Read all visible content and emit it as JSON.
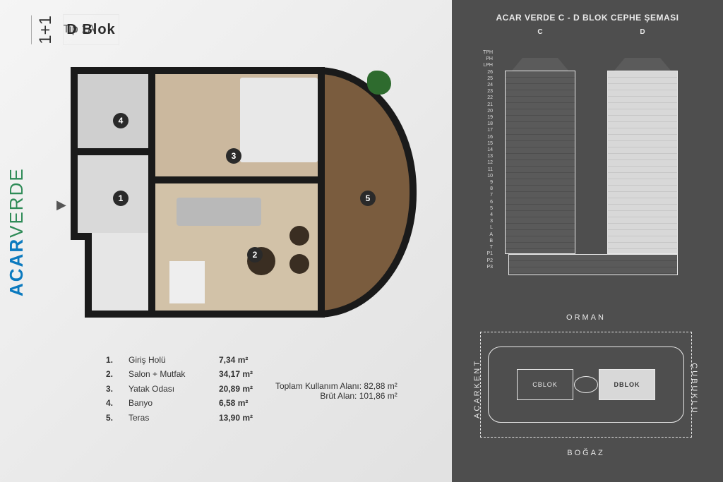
{
  "brand": {
    "part1": "ACAR",
    "part2": "VERDE"
  },
  "header": {
    "unit_type": "1+1",
    "block": "D Blok",
    "tip": "Tip 1A"
  },
  "rooms": [
    {
      "n": "1.",
      "label": "Giriş Holü",
      "area": "7,34  m²"
    },
    {
      "n": "2.",
      "label": "Salon + Mutfak",
      "area": "34,17 m²"
    },
    {
      "n": "3.",
      "label": "Yatak Odası",
      "area": "20,89 m²"
    },
    {
      "n": "4.",
      "label": "Banyo",
      "area": "6,58  m²"
    },
    {
      "n": "5.",
      "label": "Teras",
      "area": "13,90 m²"
    }
  ],
  "markers": {
    "m1": "1",
    "m2": "2",
    "m3": "3",
    "m4": "4",
    "m5": "5"
  },
  "totals": {
    "use": "Toplam Kullanım Alanı: 82,88 m²",
    "gross": "Brüt Alan:  101,86 m²"
  },
  "elevation": {
    "title": "ACAR VERDE C - D  BLOK CEPHE ŞEMASI",
    "tower_c": "C",
    "tower_d": "D",
    "floors": [
      "TPH",
      "",
      "PH",
      "LPH",
      "26",
      "25",
      "24",
      "23",
      "22",
      "21",
      "20",
      "19",
      "18",
      "17",
      "16",
      "15",
      "14",
      "13",
      "12",
      "11",
      "10",
      "9",
      "8",
      "7",
      "6",
      "5",
      "4",
      "3",
      "",
      "L",
      "A",
      "B",
      "",
      "T",
      "",
      "P1",
      "P2",
      "P3"
    ]
  },
  "site": {
    "top": "ORMAN",
    "bottom": "BOĞAZ",
    "left": "ACARKENT",
    "right": "ÇUBUKLU",
    "cblock": "CBLOK",
    "dblock": "DBLOK"
  },
  "colors": {
    "wall": "#1a1a1a",
    "wood": "#cbb89e",
    "wood2": "#d2c2a8",
    "deck": "#7a5c3e",
    "grey": "#d9d9d9",
    "panel_bg": "#4e4e4e",
    "highlight": "#d8d8d8",
    "brand1": "#0b7abf",
    "brand2": "#2e8b57"
  }
}
